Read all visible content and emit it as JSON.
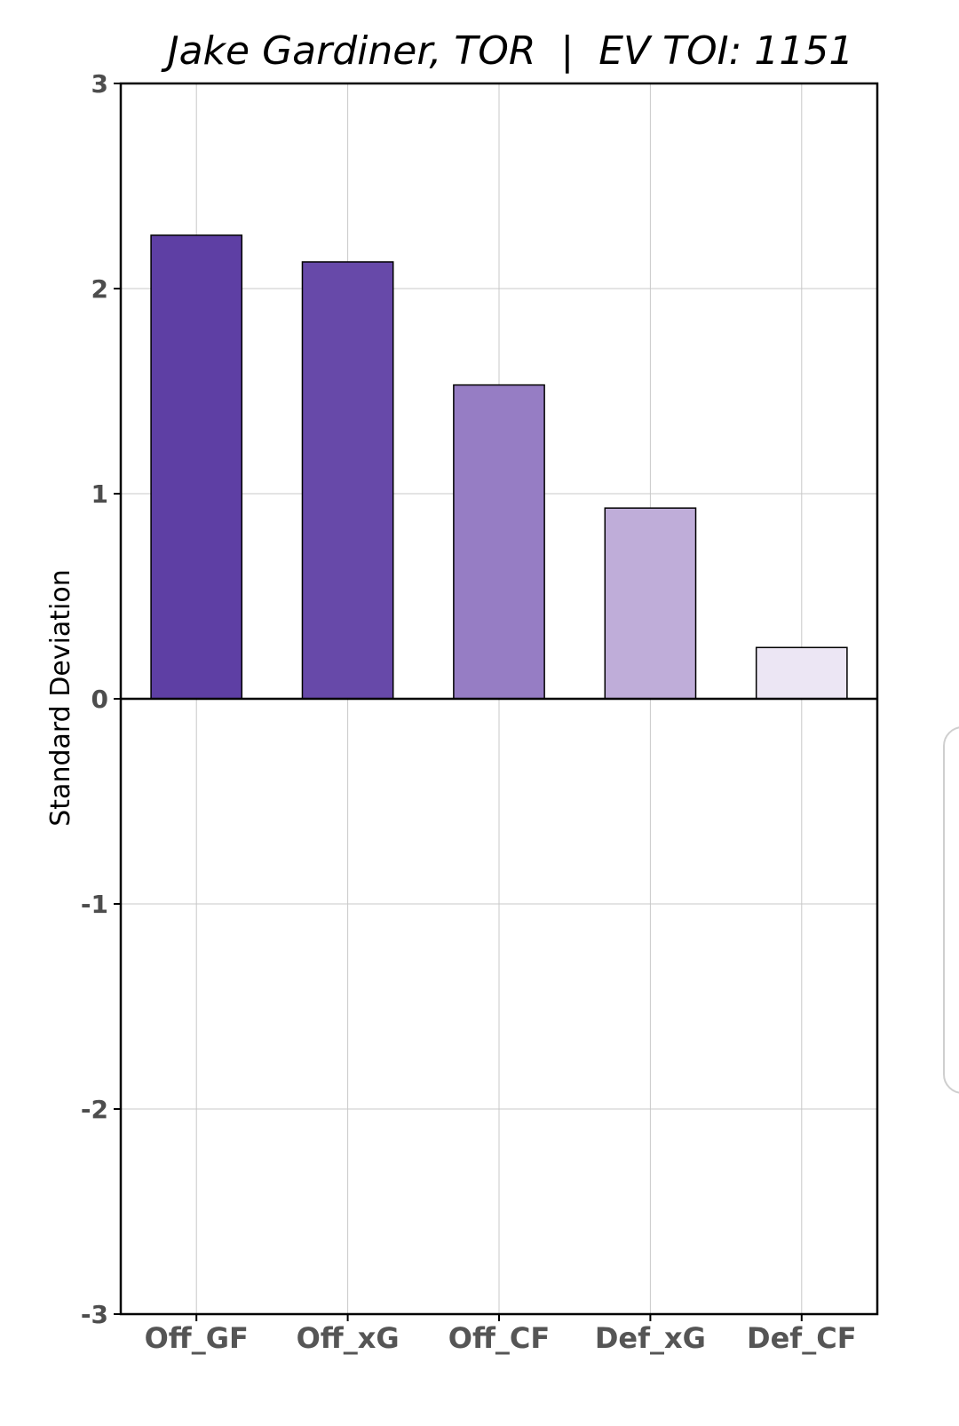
{
  "chart_data": {
    "type": "bar",
    "title": "Jake Gardiner, TOR  |  EV TOI: 1151",
    "xlabel": "",
    "ylabel": "Standard Deviation",
    "categories": [
      "Off_GF",
      "Off_xG",
      "Off_CF",
      "Def_xG",
      "Def_CF"
    ],
    "values": [
      2.26,
      2.13,
      1.53,
      0.93,
      0.25
    ],
    "bar_colors": [
      "#5e3fa4",
      "#6749a9",
      "#967dc4",
      "#bfadd9",
      "#ece6f4"
    ],
    "ylim": [
      -3,
      3
    ],
    "yticks": [
      "3",
      "2",
      "1",
      "0",
      "-1",
      "-2",
      "-3"
    ],
    "grid": true,
    "legend": "none"
  }
}
